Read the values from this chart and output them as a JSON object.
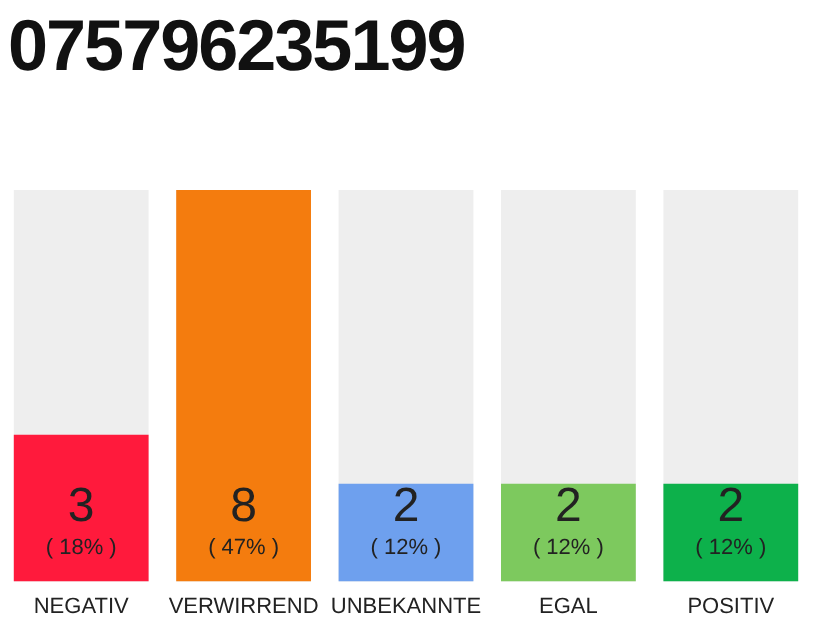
{
  "chart_data": {
    "type": "bar",
    "title": "075796235199",
    "ylim": [
      0,
      8
    ],
    "tick_labels": "x",
    "categories": [
      "NEGATIV",
      "VERWIRREND",
      "UNBEKANNTE",
      "EGAL",
      "POSITIV"
    ],
    "values": [
      3,
      8,
      2,
      2,
      2
    ],
    "colors": [
      "#ff1a3c",
      "#f47c0e",
      "#6ea0ee",
      "#7dc95e",
      "#0db14b"
    ],
    "value_labels": [
      "3\n( 18% )",
      "8\n( 47% )",
      "2\n( 12% )",
      "2\n( 12% )",
      "2\n( 12% )"
    ],
    "grid": false,
    "legend": false
  }
}
